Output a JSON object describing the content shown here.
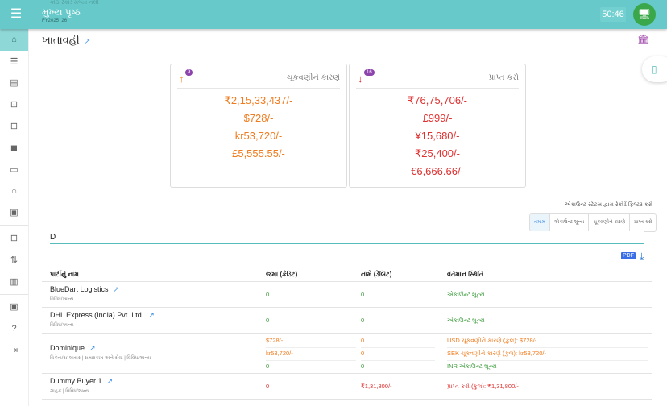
{
  "header": {
    "faint_text": "કોઈ રેકોર્ડ મળ્યા નથી",
    "title": "મુખ્ય પૃષ્ઠ",
    "fy": "FY2025_26",
    "timer": "50:46",
    "menu_icon": "menu-icon"
  },
  "sidebar": {
    "items": [
      "home",
      "list",
      "document",
      "inbox-in",
      "inbox-out",
      "label",
      "monitor",
      "bank",
      "archive",
      "add-library",
      "swap-vertical",
      "table",
      "badge",
      "help",
      "logout"
    ],
    "active": "home"
  },
  "page": {
    "title": "ખાતાવહી"
  },
  "cards": [
    {
      "label": "ચૂકવણીને કારણે",
      "badge": "9",
      "arrow": "↑",
      "color": "#f07c1f",
      "values": [
        "₹2,15,33,437/-",
        "$728/-",
        "kr53,720/-",
        "£5,555.55/-"
      ]
    },
    {
      "label": "પ્રાપ્ત કરો",
      "badge": "16",
      "arrow": "↓",
      "color": "#e0302f",
      "values": [
        "₹76,75,706/-",
        "£999/-",
        "¥15,680/-",
        "₹25,400/-",
        "€6,666.66/-"
      ]
    }
  ],
  "filter": {
    "label": "એકાઉન્ટ સ્ટેટસ દ્વારા રેકોર્ડ ફિલ્ટર કરો",
    "options": [
      "તમામ",
      "એકાઉન્ટ શૂન્ય",
      "ચૂકવણીને કારણે",
      "પ્રાપ્ત કરો"
    ],
    "selected": "તમામ"
  },
  "search": {
    "value": "D"
  },
  "table": {
    "headers": [
      "પાર્ટીનું નામ",
      "જમા (ક્રેડિટ)",
      "નામે (ડેબિટ)",
      "વર્તમાન સ્થિતિ"
    ],
    "rows": [
      {
        "name": "BlueDart Logistics",
        "sub": "વિવિધ/અન્ય",
        "lines": [
          {
            "credit": "0",
            "debit": "0",
            "status": "એકાઉન્ટ શૂન્ય",
            "color": "green"
          }
        ]
      },
      {
        "name": "DHL Express (India) Pvt. Ltd.",
        "sub": "વિવિધ/અન્ય",
        "lines": [
          {
            "credit": "0",
            "debit": "0",
            "status": "એકાઉન્ટ શૂન્ય",
            "color": "green"
          }
        ]
      },
      {
        "name": "Dominique",
        "sub": "વિક્રેતા/સપ્લાયર | સમારકામ અને સેવા | વિવિધ/અન્ય",
        "lines": [
          {
            "credit": "$728/-",
            "debit": "0",
            "status": "USD ચૂકવણીને કારણે (કુલ): $728/-",
            "color": "orange"
          },
          {
            "credit": "kr53,720/-",
            "debit": "0",
            "status": "SEK ચૂકવણીને કારણે (કુલ): kr53,720/-",
            "color": "orange"
          },
          {
            "credit": "0",
            "debit": "0",
            "status": "INR એકાઉન્ટ શૂન્ય",
            "color": "green"
          }
        ]
      },
      {
        "name": "Dummy Buyer 1",
        "sub": "ગ્રાહક | વિવિધ/અન્ય",
        "lines": [
          {
            "credit": "0",
            "debit": "₹1,31,800/-",
            "status": "પ્રાપ્ત કરો (કુલ): ₹1,31,800/-",
            "color": "red"
          }
        ]
      }
    ]
  }
}
